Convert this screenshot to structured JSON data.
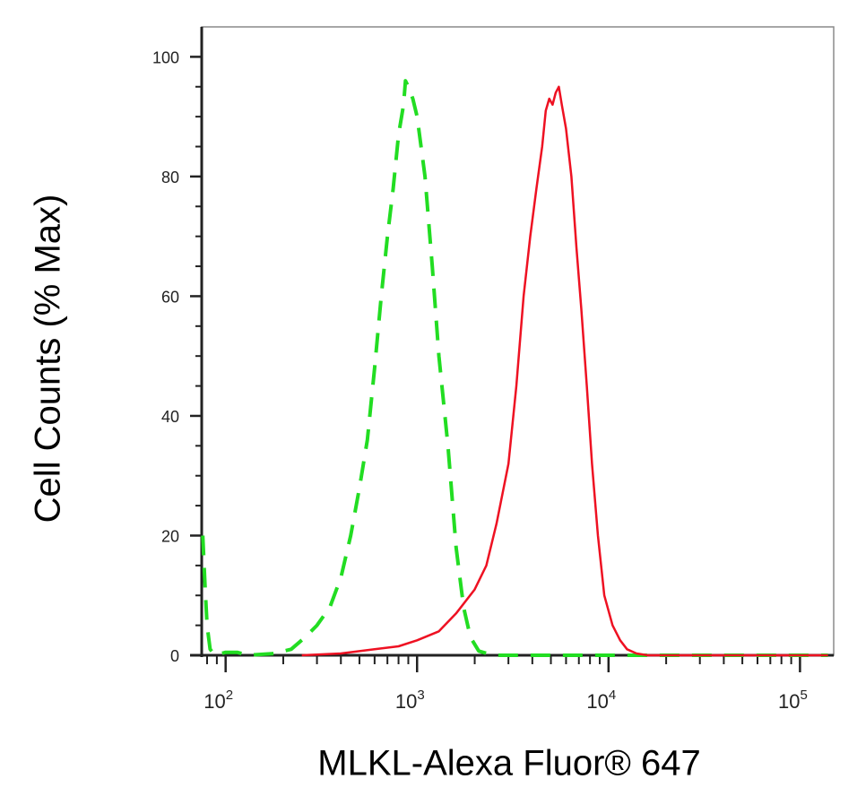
{
  "chart_data": {
    "type": "line",
    "xlabel": "MLKL-Alexa Fluor® 647",
    "ylabel": "Cell Counts (% Max)",
    "x_scale": "log",
    "xlim": [
      75,
      150000
    ],
    "ylim": [
      0,
      105
    ],
    "x_ticks": [
      {
        "value": 100,
        "base": "10",
        "exp": "2"
      },
      {
        "value": 1000,
        "base": "10",
        "exp": "3"
      },
      {
        "value": 10000,
        "base": "10",
        "exp": "4"
      },
      {
        "value": 100000,
        "base": "10",
        "exp": "5"
      }
    ],
    "y_ticks": [
      0,
      20,
      40,
      60,
      80,
      100
    ],
    "grid": false,
    "series": [
      {
        "style": "dashed",
        "color": "#22dd22",
        "points": [
          [
            76,
            20
          ],
          [
            78,
            12
          ],
          [
            80,
            5
          ],
          [
            83,
            1
          ],
          [
            88,
            0
          ],
          [
            100,
            0.5
          ],
          [
            115,
            0.5
          ],
          [
            130,
            0
          ],
          [
            180,
            0.3
          ],
          [
            220,
            1
          ],
          [
            260,
            3
          ],
          [
            300,
            5
          ],
          [
            350,
            8
          ],
          [
            400,
            13
          ],
          [
            450,
            20
          ],
          [
            500,
            28
          ],
          [
            550,
            36
          ],
          [
            600,
            48
          ],
          [
            650,
            60
          ],
          [
            700,
            70
          ],
          [
            750,
            78
          ],
          [
            800,
            87
          ],
          [
            850,
            92
          ],
          [
            870,
            96
          ],
          [
            900,
            95
          ],
          [
            950,
            93
          ],
          [
            1000,
            90
          ],
          [
            1100,
            80
          ],
          [
            1200,
            65
          ],
          [
            1300,
            50
          ],
          [
            1450,
            35
          ],
          [
            1600,
            18
          ],
          [
            1750,
            8
          ],
          [
            1900,
            3
          ],
          [
            2100,
            0.7
          ],
          [
            2500,
            0
          ],
          [
            3000,
            0
          ],
          [
            5000,
            0
          ],
          [
            8000,
            0
          ],
          [
            10000,
            0
          ],
          [
            15000,
            0
          ],
          [
            20000,
            0
          ],
          [
            140000,
            0
          ]
        ]
      },
      {
        "style": "solid",
        "color": "#ee1122",
        "points": [
          [
            250,
            0
          ],
          [
            400,
            0.3
          ],
          [
            600,
            1
          ],
          [
            800,
            1.5
          ],
          [
            1000,
            2.5
          ],
          [
            1300,
            4
          ],
          [
            1600,
            7
          ],
          [
            2000,
            11
          ],
          [
            2300,
            15
          ],
          [
            2600,
            22
          ],
          [
            3000,
            32
          ],
          [
            3300,
            45
          ],
          [
            3600,
            60
          ],
          [
            3900,
            70
          ],
          [
            4200,
            78
          ],
          [
            4500,
            85
          ],
          [
            4700,
            91
          ],
          [
            4900,
            93
          ],
          [
            5100,
            92
          ],
          [
            5300,
            94
          ],
          [
            5500,
            95
          ],
          [
            5700,
            92
          ],
          [
            6000,
            88
          ],
          [
            6400,
            80
          ],
          [
            6800,
            68
          ],
          [
            7200,
            58
          ],
          [
            7700,
            45
          ],
          [
            8200,
            32
          ],
          [
            8800,
            20
          ],
          [
            9500,
            10
          ],
          [
            10500,
            5
          ],
          [
            11500,
            2.5
          ],
          [
            12500,
            1
          ],
          [
            14000,
            0.3
          ],
          [
            16000,
            0
          ],
          [
            30000,
            0
          ],
          [
            100000,
            0
          ],
          [
            140000,
            0
          ]
        ]
      }
    ]
  }
}
